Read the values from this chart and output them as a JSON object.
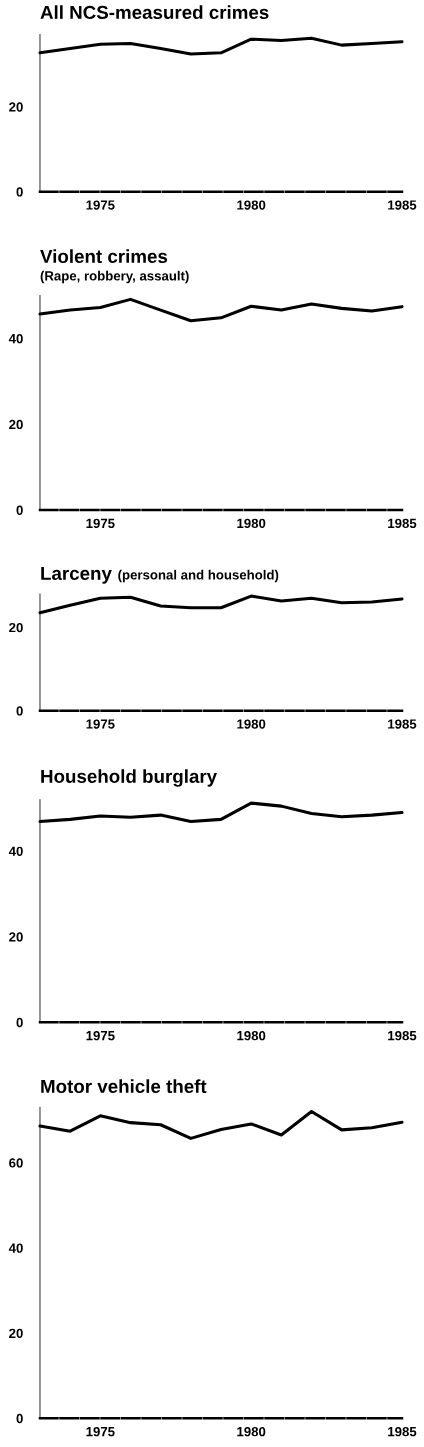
{
  "chart_data": [
    {
      "type": "line",
      "title": "All NCS-measured crimes",
      "x": [
        1973,
        1974,
        1975,
        1976,
        1977,
        1978,
        1979,
        1980,
        1981,
        1982,
        1983,
        1984,
        1985
      ],
      "values": [
        32.7,
        33.7,
        34.7,
        34.9,
        33.7,
        32.4,
        32.7,
        35.9,
        35.6,
        36.1,
        34.5,
        34.9,
        35.3
      ],
      "color": "#000000",
      "xlim": [
        1973,
        1985
      ],
      "xticks": [
        1975,
        1980,
        1985
      ],
      "ylim": [
        0,
        37
      ],
      "yticks": [
        0,
        20
      ]
    },
    {
      "type": "line",
      "title": "Violent crimes",
      "subtitle": "(Rape, robbery, assault)",
      "x": [
        1973,
        1974,
        1975,
        1976,
        1977,
        1978,
        1979,
        1980,
        1981,
        1982,
        1983,
        1984,
        1985
      ],
      "values": [
        45.7,
        46.6,
        47.2,
        49.1,
        46.6,
        44.1,
        44.8,
        47.5,
        46.6,
        48.0,
        47.0,
        46.4,
        47.4
      ],
      "color": "#000000",
      "xlim": [
        1973,
        1985
      ],
      "xticks": [
        1975,
        1980,
        1985
      ],
      "ylim": [
        0,
        50
      ],
      "yticks": [
        0,
        20,
        40
      ]
    },
    {
      "type": "line",
      "title": "Larceny",
      "subtitle": "(personal and household)",
      "x": [
        1973,
        1974,
        1975,
        1976,
        1977,
        1978,
        1979,
        1980,
        1981,
        1982,
        1983,
        1984,
        1985
      ],
      "values": [
        23.5,
        25.3,
        27.0,
        27.2,
        25.1,
        24.7,
        24.7,
        27.5,
        26.3,
        27.0,
        25.9,
        26.1,
        26.8
      ],
      "color": "#000000",
      "xlim": [
        1973,
        1985
      ],
      "xticks": [
        1975,
        1980,
        1985
      ],
      "ylim": [
        0,
        28
      ],
      "yticks": [
        0,
        20
      ]
    },
    {
      "type": "line",
      "title": "Household burglary",
      "x": [
        1973,
        1974,
        1975,
        1976,
        1977,
        1978,
        1979,
        1980,
        1981,
        1982,
        1983,
        1984,
        1985
      ],
      "values": [
        46.9,
        47.4,
        48.2,
        47.9,
        48.4,
        46.9,
        47.4,
        51.2,
        50.5,
        48.8,
        48.0,
        48.4,
        49.0
      ],
      "color": "#000000",
      "xlim": [
        1973,
        1985
      ],
      "xticks": [
        1975,
        1980,
        1985
      ],
      "ylim": [
        0,
        52
      ],
      "yticks": [
        0,
        20,
        40
      ]
    },
    {
      "type": "line",
      "title": "Motor vehicle theft",
      "x": [
        1973,
        1974,
        1975,
        1976,
        1977,
        1978,
        1979,
        1980,
        1981,
        1982,
        1983,
        1984,
        1985
      ],
      "values": [
        68.6,
        67.4,
        71.0,
        69.4,
        68.9,
        65.7,
        67.8,
        69.1,
        66.5,
        72.0,
        67.7,
        68.2,
        69.5
      ],
      "color": "#000000",
      "xlim": [
        1973,
        1985
      ],
      "xticks": [
        1975,
        1980,
        1985
      ],
      "ylim": [
        0,
        73
      ],
      "yticks": [
        0,
        20,
        40,
        60
      ]
    }
  ]
}
